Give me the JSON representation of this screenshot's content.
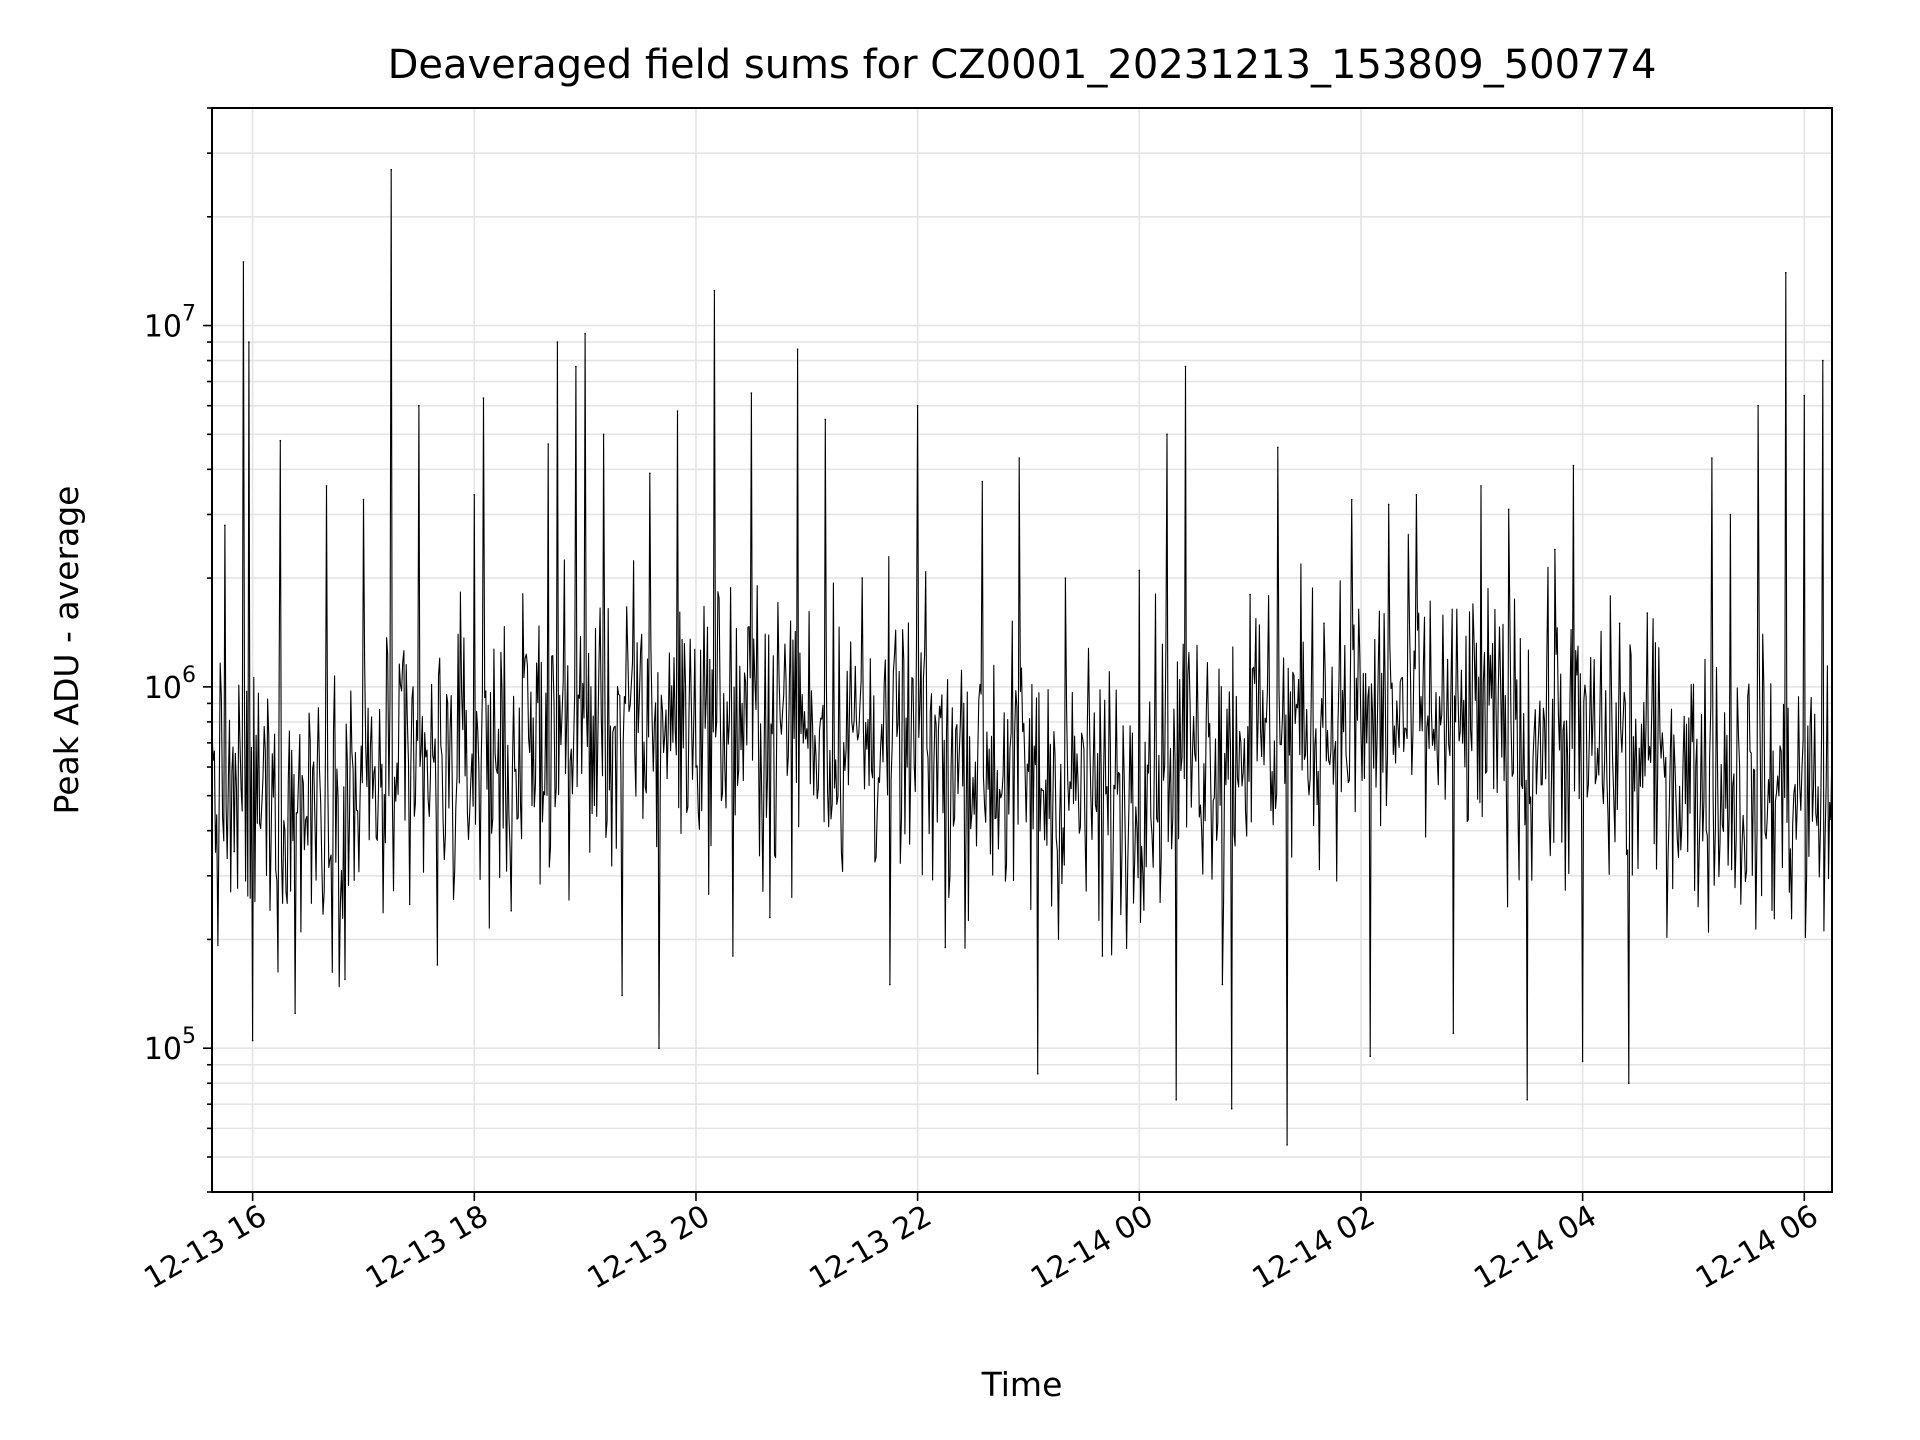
{
  "chart_data": {
    "type": "line",
    "title": "Deaveraged field sums for CZ0001_20231213_153809_500774",
    "xlabel": "Time",
    "ylabel": "Peak ADU - average",
    "yscale": "log",
    "grid": true,
    "xlim": [
      "2023-12-13 15:38",
      "2023-12-14 06:15"
    ],
    "ylim": [
      40000,
      40000000
    ],
    "x_ticks": [
      {
        "value": "2023-12-13 16:00",
        "label": "12-13 16"
      },
      {
        "value": "2023-12-13 18:00",
        "label": "12-13 18"
      },
      {
        "value": "2023-12-13 20:00",
        "label": "12-13 20"
      },
      {
        "value": "2023-12-13 22:00",
        "label": "12-13 22"
      },
      {
        "value": "2023-12-14 00:00",
        "label": "12-14 00"
      },
      {
        "value": "2023-12-14 02:00",
        "label": "12-14 02"
      },
      {
        "value": "2023-12-14 04:00",
        "label": "12-14 04"
      },
      {
        "value": "2023-12-14 06:00",
        "label": "12-14 06"
      }
    ],
    "y_ticks": [
      {
        "value": 100000,
        "base": "10",
        "exp": "5"
      },
      {
        "value": 1000000,
        "base": "10",
        "exp": "6"
      },
      {
        "value": 10000000,
        "base": "10",
        "exp": "7"
      }
    ],
    "series": [
      {
        "color": "#000000",
        "points": [
          [
            "2023-12-13 15:38",
            750000
          ],
          [
            "2023-12-13 15:45",
            2800000
          ],
          [
            "2023-12-13 15:50",
            350000
          ],
          [
            "2023-12-13 15:55",
            15000000
          ],
          [
            "2023-12-13 15:58",
            9000000
          ],
          [
            "2023-12-13 16:00",
            105000
          ],
          [
            "2023-12-13 16:15",
            4800000
          ],
          [
            "2023-12-13 16:23",
            125000
          ],
          [
            "2023-12-13 16:40",
            3600000
          ],
          [
            "2023-12-13 16:50",
            155000
          ],
          [
            "2023-12-13 17:00",
            3300000
          ],
          [
            "2023-12-13 17:15",
            27000000
          ],
          [
            "2023-12-13 17:25",
            250000
          ],
          [
            "2023-12-13 17:30",
            6000000
          ],
          [
            "2023-12-13 17:40",
            170000
          ],
          [
            "2023-12-13 18:00",
            3400000
          ],
          [
            "2023-12-13 18:05",
            6300000
          ],
          [
            "2023-12-13 18:20",
            240000
          ],
          [
            "2023-12-13 18:40",
            4700000
          ],
          [
            "2023-12-13 18:45",
            9000000
          ],
          [
            "2023-12-13 18:55",
            7700000
          ],
          [
            "2023-12-13 19:00",
            9500000
          ],
          [
            "2023-12-13 19:10",
            5000000
          ],
          [
            "2023-12-13 19:20",
            140000
          ],
          [
            "2023-12-13 19:35",
            3900000
          ],
          [
            "2023-12-13 19:40",
            100000
          ],
          [
            "2023-12-13 19:50",
            5800000
          ],
          [
            "2023-12-13 20:00",
            600000
          ],
          [
            "2023-12-13 20:10",
            12500000
          ],
          [
            "2023-12-13 20:20",
            180000
          ],
          [
            "2023-12-13 20:30",
            6500000
          ],
          [
            "2023-12-13 20:40",
            230000
          ],
          [
            "2023-12-13 20:55",
            8600000
          ],
          [
            "2023-12-13 21:10",
            5500000
          ],
          [
            "2023-12-13 21:30",
            2000000
          ],
          [
            "2023-12-13 21:45",
            150000
          ],
          [
            "2023-12-13 22:00",
            6000000
          ],
          [
            "2023-12-13 22:15",
            190000
          ],
          [
            "2023-12-13 22:35",
            3700000
          ],
          [
            "2023-12-13 22:55",
            4300000
          ],
          [
            "2023-12-13 23:05",
            85000
          ],
          [
            "2023-12-13 23:20",
            2000000
          ],
          [
            "2023-12-13 23:40",
            180000
          ],
          [
            "2023-12-14 00:00",
            2100000
          ],
          [
            "2023-12-14 00:15",
            5000000
          ],
          [
            "2023-12-14 00:20",
            72000
          ],
          [
            "2023-12-14 00:25",
            7700000
          ],
          [
            "2023-12-14 00:45",
            150000
          ],
          [
            "2023-12-14 00:50",
            68000
          ],
          [
            "2023-12-14 01:00",
            1800000
          ],
          [
            "2023-12-14 01:15",
            4600000
          ],
          [
            "2023-12-14 01:20",
            54000
          ],
          [
            "2023-12-14 01:40",
            1500000
          ],
          [
            "2023-12-14 01:55",
            3300000
          ],
          [
            "2023-12-14 02:05",
            95000
          ],
          [
            "2023-12-14 02:15",
            3200000
          ],
          [
            "2023-12-14 02:30",
            3400000
          ],
          [
            "2023-12-14 02:50",
            110000
          ],
          [
            "2023-12-14 03:05",
            3600000
          ],
          [
            "2023-12-14 03:20",
            3100000
          ],
          [
            "2023-12-14 03:30",
            72000
          ],
          [
            "2023-12-14 03:45",
            2400000
          ],
          [
            "2023-12-14 03:55",
            4100000
          ],
          [
            "2023-12-14 04:00",
            92000
          ],
          [
            "2023-12-14 04:20",
            1500000
          ],
          [
            "2023-12-14 04:25",
            80000
          ],
          [
            "2023-12-14 04:35",
            1600000
          ],
          [
            "2023-12-14 04:50",
            600000
          ],
          [
            "2023-12-14 05:10",
            4300000
          ],
          [
            "2023-12-14 05:20",
            3000000
          ],
          [
            "2023-12-14 05:35",
            6000000
          ],
          [
            "2023-12-14 05:50",
            14000000
          ],
          [
            "2023-12-14 06:00",
            6400000
          ],
          [
            "2023-12-14 06:10",
            8000000
          ],
          [
            "2023-12-14 06:15",
            700000
          ]
        ]
      }
    ]
  }
}
